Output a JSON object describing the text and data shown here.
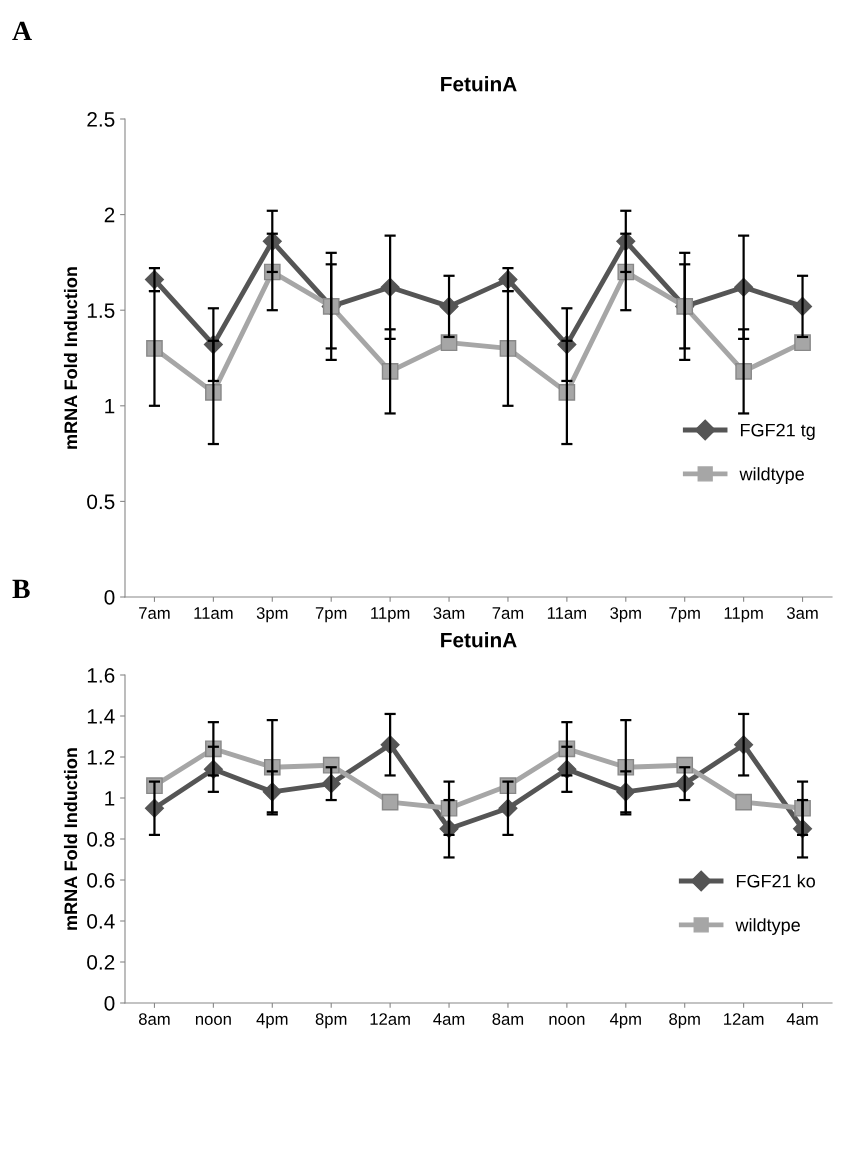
{
  "chart_data": [
    {
      "type": "line",
      "title": "FetuinA",
      "ylabel": "mRNA Fold Induction",
      "annotations": [
        "A"
      ],
      "categories": [
        "7am",
        "11am",
        "3pm",
        "7pm",
        "11pm",
        "3am",
        "7am",
        "11am",
        "3pm",
        "7pm",
        "11pm",
        "3am"
      ],
      "series": [
        {
          "name": "FGF21 tg",
          "color": "#555555",
          "marker": "diamond",
          "values": [
            1.66,
            1.32,
            1.86,
            1.52,
            1.62,
            1.52,
            1.66,
            1.32,
            1.86,
            1.52,
            1.62,
            1.52
          ],
          "errors": [
            0.06,
            0.19,
            0.16,
            0.28,
            0.27,
            0.16,
            0.06,
            0.19,
            0.16,
            0.28,
            0.27,
            0.16
          ]
        },
        {
          "name": "wildtype",
          "color": "#a6a6a6",
          "marker": "square",
          "values": [
            1.3,
            1.07,
            1.7,
            1.52,
            1.18,
            1.33,
            1.3,
            1.07,
            1.7,
            1.52,
            1.18,
            1.33
          ],
          "errors": [
            0.3,
            0.27,
            0.2,
            0.22,
            0.22,
            null,
            0.3,
            0.27,
            0.2,
            0.22,
            0.22,
            null
          ]
        }
      ],
      "ylim": [
        0,
        2.5
      ],
      "yticks": [
        0,
        0.5,
        1,
        1.5,
        2,
        2.5
      ],
      "grid": false,
      "legend": "right"
    },
    {
      "type": "line",
      "title": "FetuinA",
      "ylabel": "mRNA Fold Induction",
      "annotations": [
        "B"
      ],
      "categories": [
        "8am",
        "noon",
        "4pm",
        "8pm",
        "12am",
        "4am",
        "8am",
        "noon",
        "4pm",
        "8pm",
        "12am",
        "4am"
      ],
      "series": [
        {
          "name": "FGF21 ko",
          "color": "#555555",
          "marker": "diamond",
          "values": [
            0.95,
            1.14,
            1.03,
            1.07,
            1.26,
            0.85,
            0.95,
            1.14,
            1.03,
            1.07,
            1.26,
            0.85
          ],
          "errors": [
            0.13,
            0.11,
            0.1,
            0.08,
            0.15,
            0.14,
            0.13,
            0.11,
            0.1,
            0.08,
            0.15,
            0.14
          ]
        },
        {
          "name": "wildtype",
          "color": "#a6a6a6",
          "marker": "square",
          "values": [
            1.06,
            1.24,
            1.15,
            1.16,
            0.98,
            0.95,
            1.06,
            1.24,
            1.15,
            1.16,
            0.98,
            0.95
          ],
          "errors": [
            null,
            0.13,
            0.23,
            null,
            null,
            0.13,
            null,
            0.13,
            0.23,
            null,
            null,
            0.13
          ]
        }
      ],
      "ylim": [
        0,
        1.6
      ],
      "yticks": [
        0,
        0.2,
        0.4,
        0.6,
        0.8,
        1,
        1.2,
        1.4,
        1.6
      ],
      "grid": false,
      "legend": "right"
    }
  ]
}
